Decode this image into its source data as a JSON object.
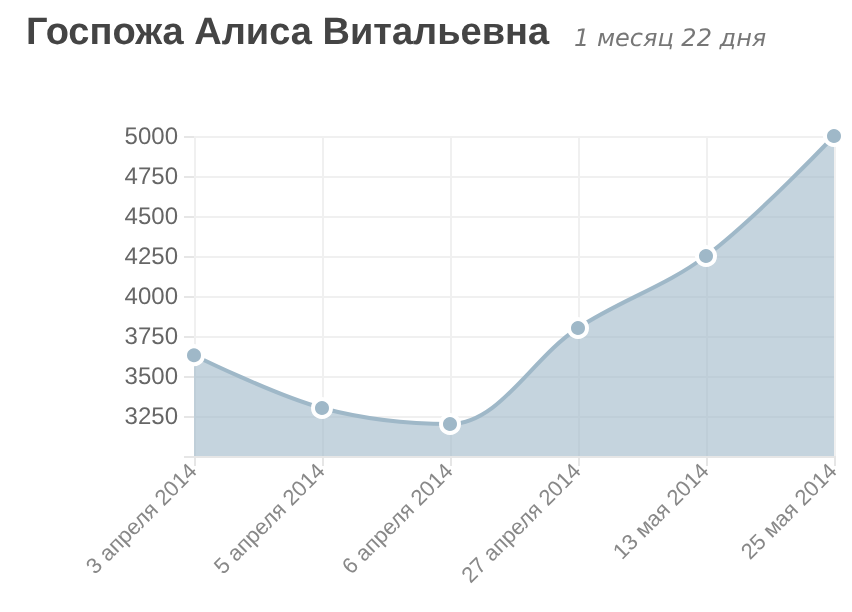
{
  "chart_data": {
    "type": "area",
    "title": "Госпожа Алиса Витальевна",
    "subtitle": "1 месяц 22 дня",
    "categories": [
      "3 апреля 2014",
      "5 апреля 2014",
      "6 апреля 2014",
      "27 апреля 2014",
      "13 мая 2014",
      "25 мая 2014"
    ],
    "values": [
      3630,
      3300,
      3200,
      3800,
      4250,
      5000
    ],
    "color": "#9fb8c8",
    "ylim": [
      3000,
      5000
    ],
    "yticks": [
      {
        "value": 3000,
        "label": null
      },
      3250,
      3500,
      3750,
      4000,
      4250,
      4500,
      4750,
      5000
    ],
    "grid": true,
    "marker": "circle"
  }
}
